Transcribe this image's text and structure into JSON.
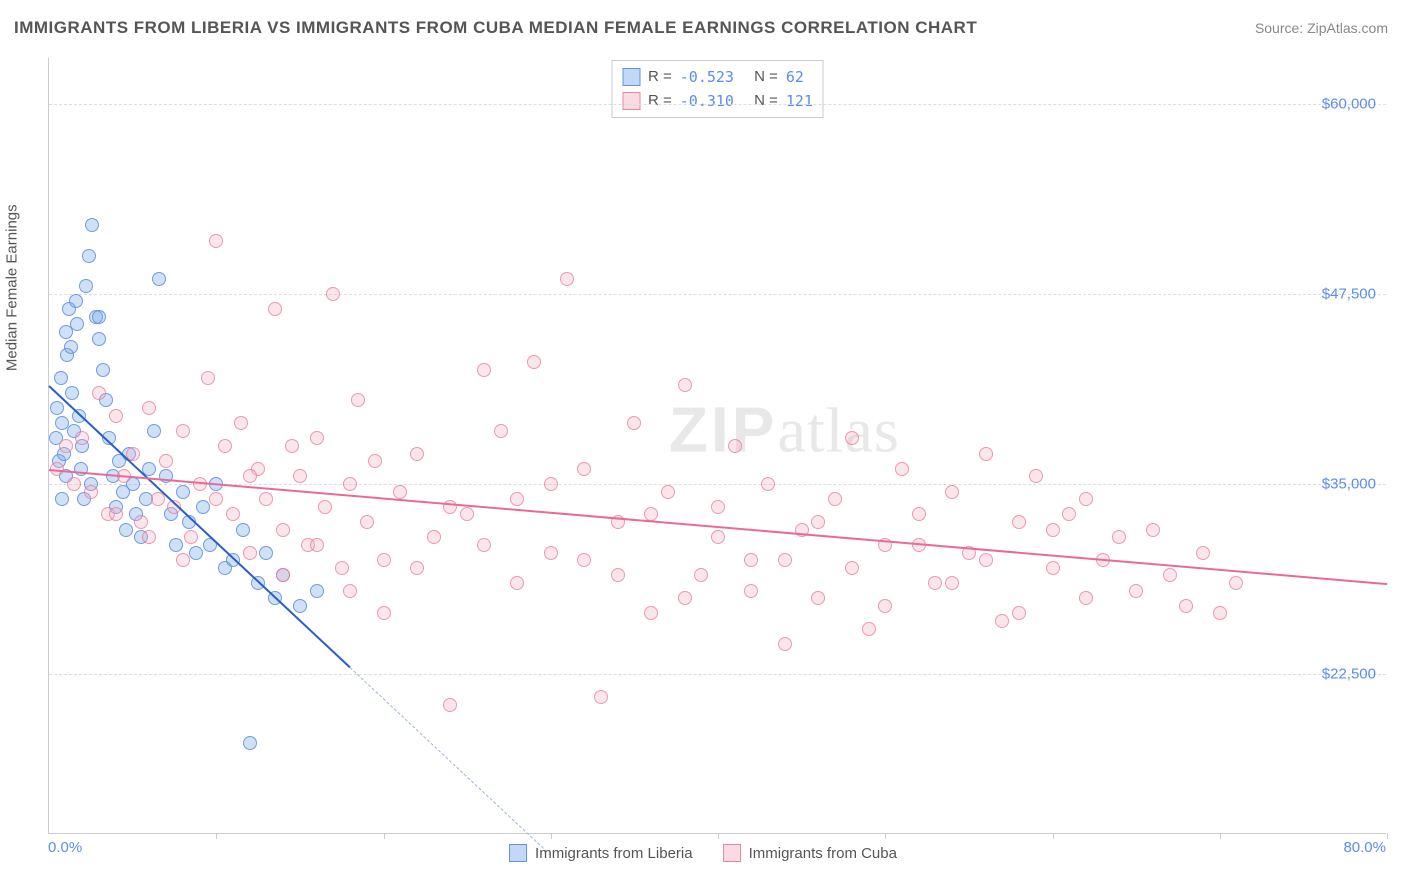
{
  "title": "IMMIGRANTS FROM LIBERIA VS IMMIGRANTS FROM CUBA MEDIAN FEMALE EARNINGS CORRELATION CHART",
  "source_label": "Source: ",
  "source_name": "ZipAtlas.com",
  "ylabel": "Median Female Earnings",
  "watermark_bold": "ZIP",
  "watermark_rest": "atlas",
  "chart": {
    "type": "scatter",
    "xlim": [
      0,
      80
    ],
    "ylim": [
      12000,
      63000
    ],
    "x_tick_start_label": "0.0%",
    "x_tick_end_label": "80.0%",
    "x_tick_positions": [
      0,
      10,
      20,
      30,
      40,
      50,
      60,
      70,
      80
    ],
    "y_ticks": [
      {
        "v": 22500,
        "label": "$22,500"
      },
      {
        "v": 35000,
        "label": "$35,000"
      },
      {
        "v": 47500,
        "label": "$47,500"
      },
      {
        "v": 60000,
        "label": "$60,000"
      }
    ],
    "background_color": "#ffffff",
    "grid_color": "#dddddd",
    "marker_radius": 7,
    "series": [
      {
        "key": "a",
        "name": "Immigrants from Liberia",
        "color_fill": "rgba(118,169,238,0.35)",
        "color_stroke": "#5a8cdc",
        "R": "-0.523",
        "N": "62",
        "trend": {
          "x1": 0,
          "y1": 41500,
          "x2": 18,
          "y2": 23000,
          "extrap_to_x": 30
        },
        "points": [
          [
            0.4,
            38000
          ],
          [
            0.5,
            40000
          ],
          [
            0.6,
            36500
          ],
          [
            0.7,
            42000
          ],
          [
            0.8,
            39000
          ],
          [
            0.9,
            37000
          ],
          [
            1.0,
            45000
          ],
          [
            1.1,
            43500
          ],
          [
            1.2,
            46500
          ],
          [
            1.3,
            44000
          ],
          [
            1.4,
            41000
          ],
          [
            1.5,
            38500
          ],
          [
            1.6,
            47000
          ],
          [
            1.7,
            45500
          ],
          [
            1.8,
            39500
          ],
          [
            1.9,
            36000
          ],
          [
            2.0,
            37500
          ],
          [
            2.1,
            34000
          ],
          [
            2.2,
            48000
          ],
          [
            2.4,
            50000
          ],
          [
            2.6,
            52000
          ],
          [
            2.8,
            46000
          ],
          [
            3.0,
            44500
          ],
          [
            3.2,
            42500
          ],
          [
            3.4,
            40500
          ],
          [
            3.6,
            38000
          ],
          [
            3.8,
            35500
          ],
          [
            4.0,
            33500
          ],
          [
            4.2,
            36500
          ],
          [
            4.4,
            34500
          ],
          [
            4.6,
            32000
          ],
          [
            4.8,
            37000
          ],
          [
            5.0,
            35000
          ],
          [
            5.2,
            33000
          ],
          [
            5.5,
            31500
          ],
          [
            5.8,
            34000
          ],
          [
            6.0,
            36000
          ],
          [
            6.3,
            38500
          ],
          [
            6.6,
            48500
          ],
          [
            7.0,
            35500
          ],
          [
            7.3,
            33000
          ],
          [
            7.6,
            31000
          ],
          [
            8.0,
            34500
          ],
          [
            8.4,
            32500
          ],
          [
            8.8,
            30500
          ],
          [
            9.2,
            33500
          ],
          [
            9.6,
            31000
          ],
          [
            10.0,
            35000
          ],
          [
            10.5,
            29500
          ],
          [
            11.0,
            30000
          ],
          [
            11.6,
            32000
          ],
          [
            12.0,
            18000
          ],
          [
            12.5,
            28500
          ],
          [
            13.0,
            30500
          ],
          [
            13.5,
            27500
          ],
          [
            14.0,
            29000
          ],
          [
            15.0,
            27000
          ],
          [
            16.0,
            28000
          ],
          [
            1.0,
            35500
          ],
          [
            0.8,
            34000
          ],
          [
            2.5,
            35000
          ],
          [
            3.0,
            46000
          ]
        ]
      },
      {
        "key": "b",
        "name": "Immigrants from Cuba",
        "color_fill": "rgba(244,172,193,0.30)",
        "color_stroke": "#e67896",
        "R": "-0.310",
        "N": "121",
        "trend": {
          "x1": 0,
          "y1": 36000,
          "x2": 80,
          "y2": 28500
        },
        "points": [
          [
            0.5,
            36000
          ],
          [
            1.0,
            37500
          ],
          [
            1.5,
            35000
          ],
          [
            2.0,
            38000
          ],
          [
            2.5,
            34500
          ],
          [
            3.0,
            41000
          ],
          [
            3.5,
            33000
          ],
          [
            4.0,
            39500
          ],
          [
            4.5,
            35500
          ],
          [
            5.0,
            37000
          ],
          [
            5.5,
            32500
          ],
          [
            6.0,
            40000
          ],
          [
            6.5,
            34000
          ],
          [
            7.0,
            36500
          ],
          [
            7.5,
            33500
          ],
          [
            8.0,
            38500
          ],
          [
            8.5,
            31500
          ],
          [
            9.0,
            35000
          ],
          [
            9.5,
            42000
          ],
          [
            10.0,
            51000
          ],
          [
            10.5,
            37500
          ],
          [
            11.0,
            33000
          ],
          [
            11.5,
            39000
          ],
          [
            12.0,
            30500
          ],
          [
            12.5,
            36000
          ],
          [
            13.0,
            34000
          ],
          [
            13.5,
            46500
          ],
          [
            14.0,
            32000
          ],
          [
            14.5,
            37500
          ],
          [
            15.0,
            35500
          ],
          [
            15.5,
            31000
          ],
          [
            16.0,
            38000
          ],
          [
            16.5,
            33500
          ],
          [
            17.0,
            47500
          ],
          [
            17.5,
            29500
          ],
          [
            18.0,
            35000
          ],
          [
            18.5,
            40500
          ],
          [
            19.0,
            32500
          ],
          [
            19.5,
            36500
          ],
          [
            20.0,
            30000
          ],
          [
            21.0,
            34500
          ],
          [
            22.0,
            37000
          ],
          [
            23.0,
            31500
          ],
          [
            24.0,
            20500
          ],
          [
            25.0,
            33000
          ],
          [
            26.0,
            42500
          ],
          [
            27.0,
            38500
          ],
          [
            28.0,
            34000
          ],
          [
            29.0,
            43000
          ],
          [
            30.0,
            30500
          ],
          [
            31.0,
            48500
          ],
          [
            32.0,
            36000
          ],
          [
            33.0,
            21000
          ],
          [
            34.0,
            32500
          ],
          [
            35.0,
            39000
          ],
          [
            36.0,
            26500
          ],
          [
            37.0,
            34500
          ],
          [
            38.0,
            41500
          ],
          [
            39.0,
            29000
          ],
          [
            40.0,
            33500
          ],
          [
            41.0,
            37500
          ],
          [
            42.0,
            30000
          ],
          [
            43.0,
            35000
          ],
          [
            44.0,
            24500
          ],
          [
            45.0,
            32000
          ],
          [
            46.0,
            27500
          ],
          [
            47.0,
            34000
          ],
          [
            48.0,
            38000
          ],
          [
            49.0,
            25500
          ],
          [
            50.0,
            31000
          ],
          [
            51.0,
            36000
          ],
          [
            52.0,
            33000
          ],
          [
            53.0,
            28500
          ],
          [
            54.0,
            34500
          ],
          [
            55.0,
            30500
          ],
          [
            56.0,
            37000
          ],
          [
            57.0,
            26000
          ],
          [
            58.0,
            32500
          ],
          [
            59.0,
            35500
          ],
          [
            60.0,
            29500
          ],
          [
            61.0,
            33000
          ],
          [
            62.0,
            34000
          ],
          [
            63.0,
            30000
          ],
          [
            64.0,
            31500
          ],
          [
            65.0,
            28000
          ],
          [
            66.0,
            32000
          ],
          [
            67.0,
            29000
          ],
          [
            68.0,
            27000
          ],
          [
            69.0,
            30500
          ],
          [
            70.0,
            26500
          ],
          [
            71.0,
            28500
          ],
          [
            4.0,
            33000
          ],
          [
            6.0,
            31500
          ],
          [
            8.0,
            30000
          ],
          [
            10.0,
            34000
          ],
          [
            12.0,
            35500
          ],
          [
            14.0,
            29000
          ],
          [
            16.0,
            31000
          ],
          [
            18.0,
            28000
          ],
          [
            20.0,
            26500
          ],
          [
            22.0,
            29500
          ],
          [
            24.0,
            33500
          ],
          [
            26.0,
            31000
          ],
          [
            28.0,
            28500
          ],
          [
            30.0,
            35000
          ],
          [
            32.0,
            30000
          ],
          [
            34.0,
            29000
          ],
          [
            36.0,
            33000
          ],
          [
            38.0,
            27500
          ],
          [
            40.0,
            31500
          ],
          [
            42.0,
            28000
          ],
          [
            44.0,
            30000
          ],
          [
            46.0,
            32500
          ],
          [
            48.0,
            29500
          ],
          [
            50.0,
            27000
          ],
          [
            52.0,
            31000
          ],
          [
            54.0,
            28500
          ],
          [
            56.0,
            30000
          ],
          [
            58.0,
            26500
          ],
          [
            60.0,
            32000
          ],
          [
            62.0,
            27500
          ]
        ]
      }
    ],
    "legend_top_labels": {
      "R": "R =",
      "N": "N ="
    }
  }
}
